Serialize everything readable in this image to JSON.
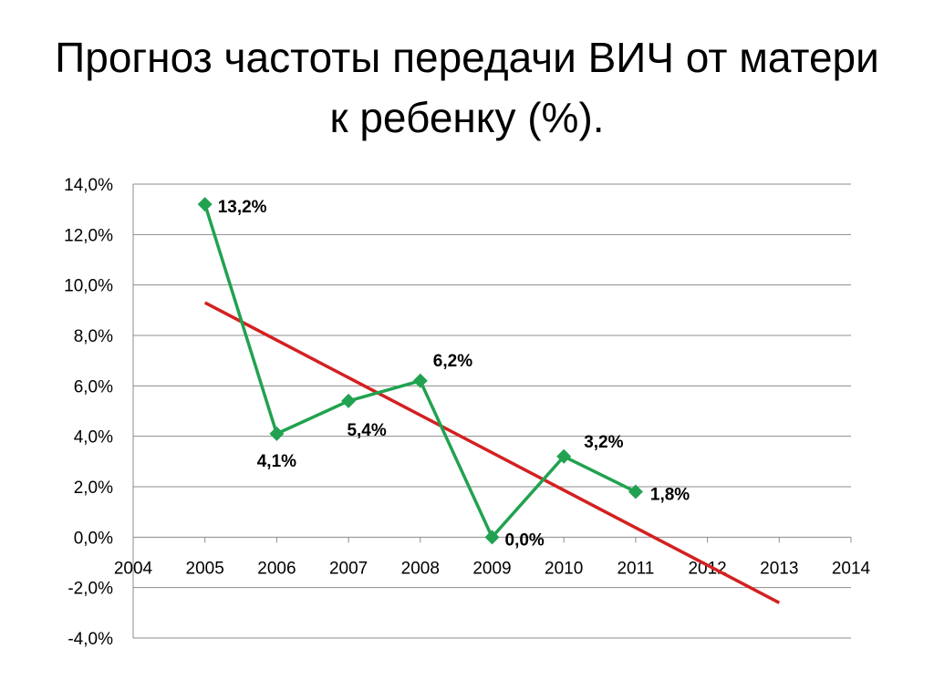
{
  "title": "Прогноз частоты передачи ВИЧ от матери к ребенку (%).",
  "chart_data": {
    "type": "line",
    "title": "",
    "xlabel": "",
    "ylabel": "",
    "xlim": [
      2004,
      2014
    ],
    "ylim": [
      -4,
      14
    ],
    "x_ticks": [
      "2004",
      "2005",
      "2006",
      "2007",
      "2008",
      "2009",
      "2010",
      "2011",
      "2012",
      "2013",
      "2014"
    ],
    "y_ticks": [
      "-4,0%",
      "-2,0%",
      "0,0%",
      "2,0%",
      "4,0%",
      "6,0%",
      "8,0%",
      "10,0%",
      "12,0%",
      "14,0%"
    ],
    "grid": true,
    "legend": "none",
    "series": [
      {
        "color": "#21a250",
        "marker": "diamond",
        "x": [
          2005,
          2006,
          2007,
          2008,
          2009,
          2010,
          2011
        ],
        "y": [
          13.2,
          4.1,
          5.4,
          6.2,
          0.0,
          3.2,
          1.8
        ],
        "labels": [
          "13,2%",
          "4,1%",
          "5,4%",
          "6,2%",
          "0,0%",
          "3,2%",
          "1,8%"
        ]
      }
    ],
    "trendline": {
      "type": "linear",
      "color": "#d42020",
      "x": [
        2005,
        2013
      ],
      "y": [
        9.3,
        -2.6
      ]
    }
  }
}
